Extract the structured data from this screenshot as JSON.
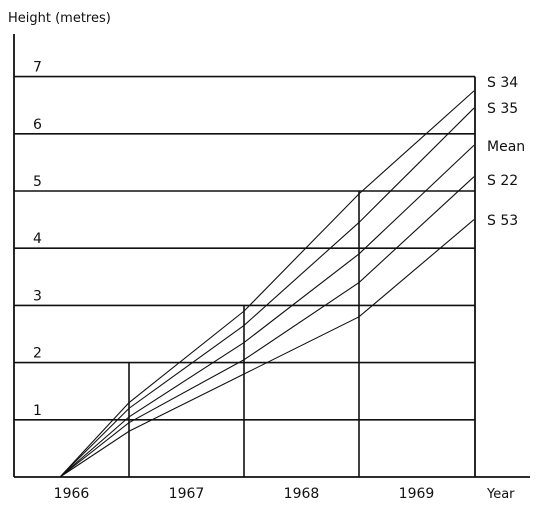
{
  "chart_data": {
    "type": "line",
    "ylabel": "Height (metres)",
    "xlabel": "Year",
    "ylim": [
      0,
      7
    ],
    "y_ticks": [
      "1",
      "2",
      "3",
      "4",
      "5",
      "6",
      "7"
    ],
    "x_ticks": [
      "1966",
      "1967",
      "1968",
      "1969"
    ],
    "grid": true,
    "x": [
      0,
      0.6,
      1.6,
      2.6,
      3.6
    ],
    "series": [
      {
        "name": "S 34",
        "values": [
          0,
          1.3,
          2.9,
          4.95,
          6.75
        ]
      },
      {
        "name": "S 35",
        "values": [
          0,
          1.2,
          2.65,
          4.45,
          6.45
        ]
      },
      {
        "name": "Mean",
        "values": [
          0,
          1.05,
          2.35,
          3.9,
          5.8
        ]
      },
      {
        "name": "S 22",
        "values": [
          0,
          0.95,
          2.05,
          3.4,
          5.25
        ]
      },
      {
        "name": "S 53",
        "values": [
          0,
          0.8,
          1.8,
          2.8,
          4.5
        ]
      }
    ]
  }
}
